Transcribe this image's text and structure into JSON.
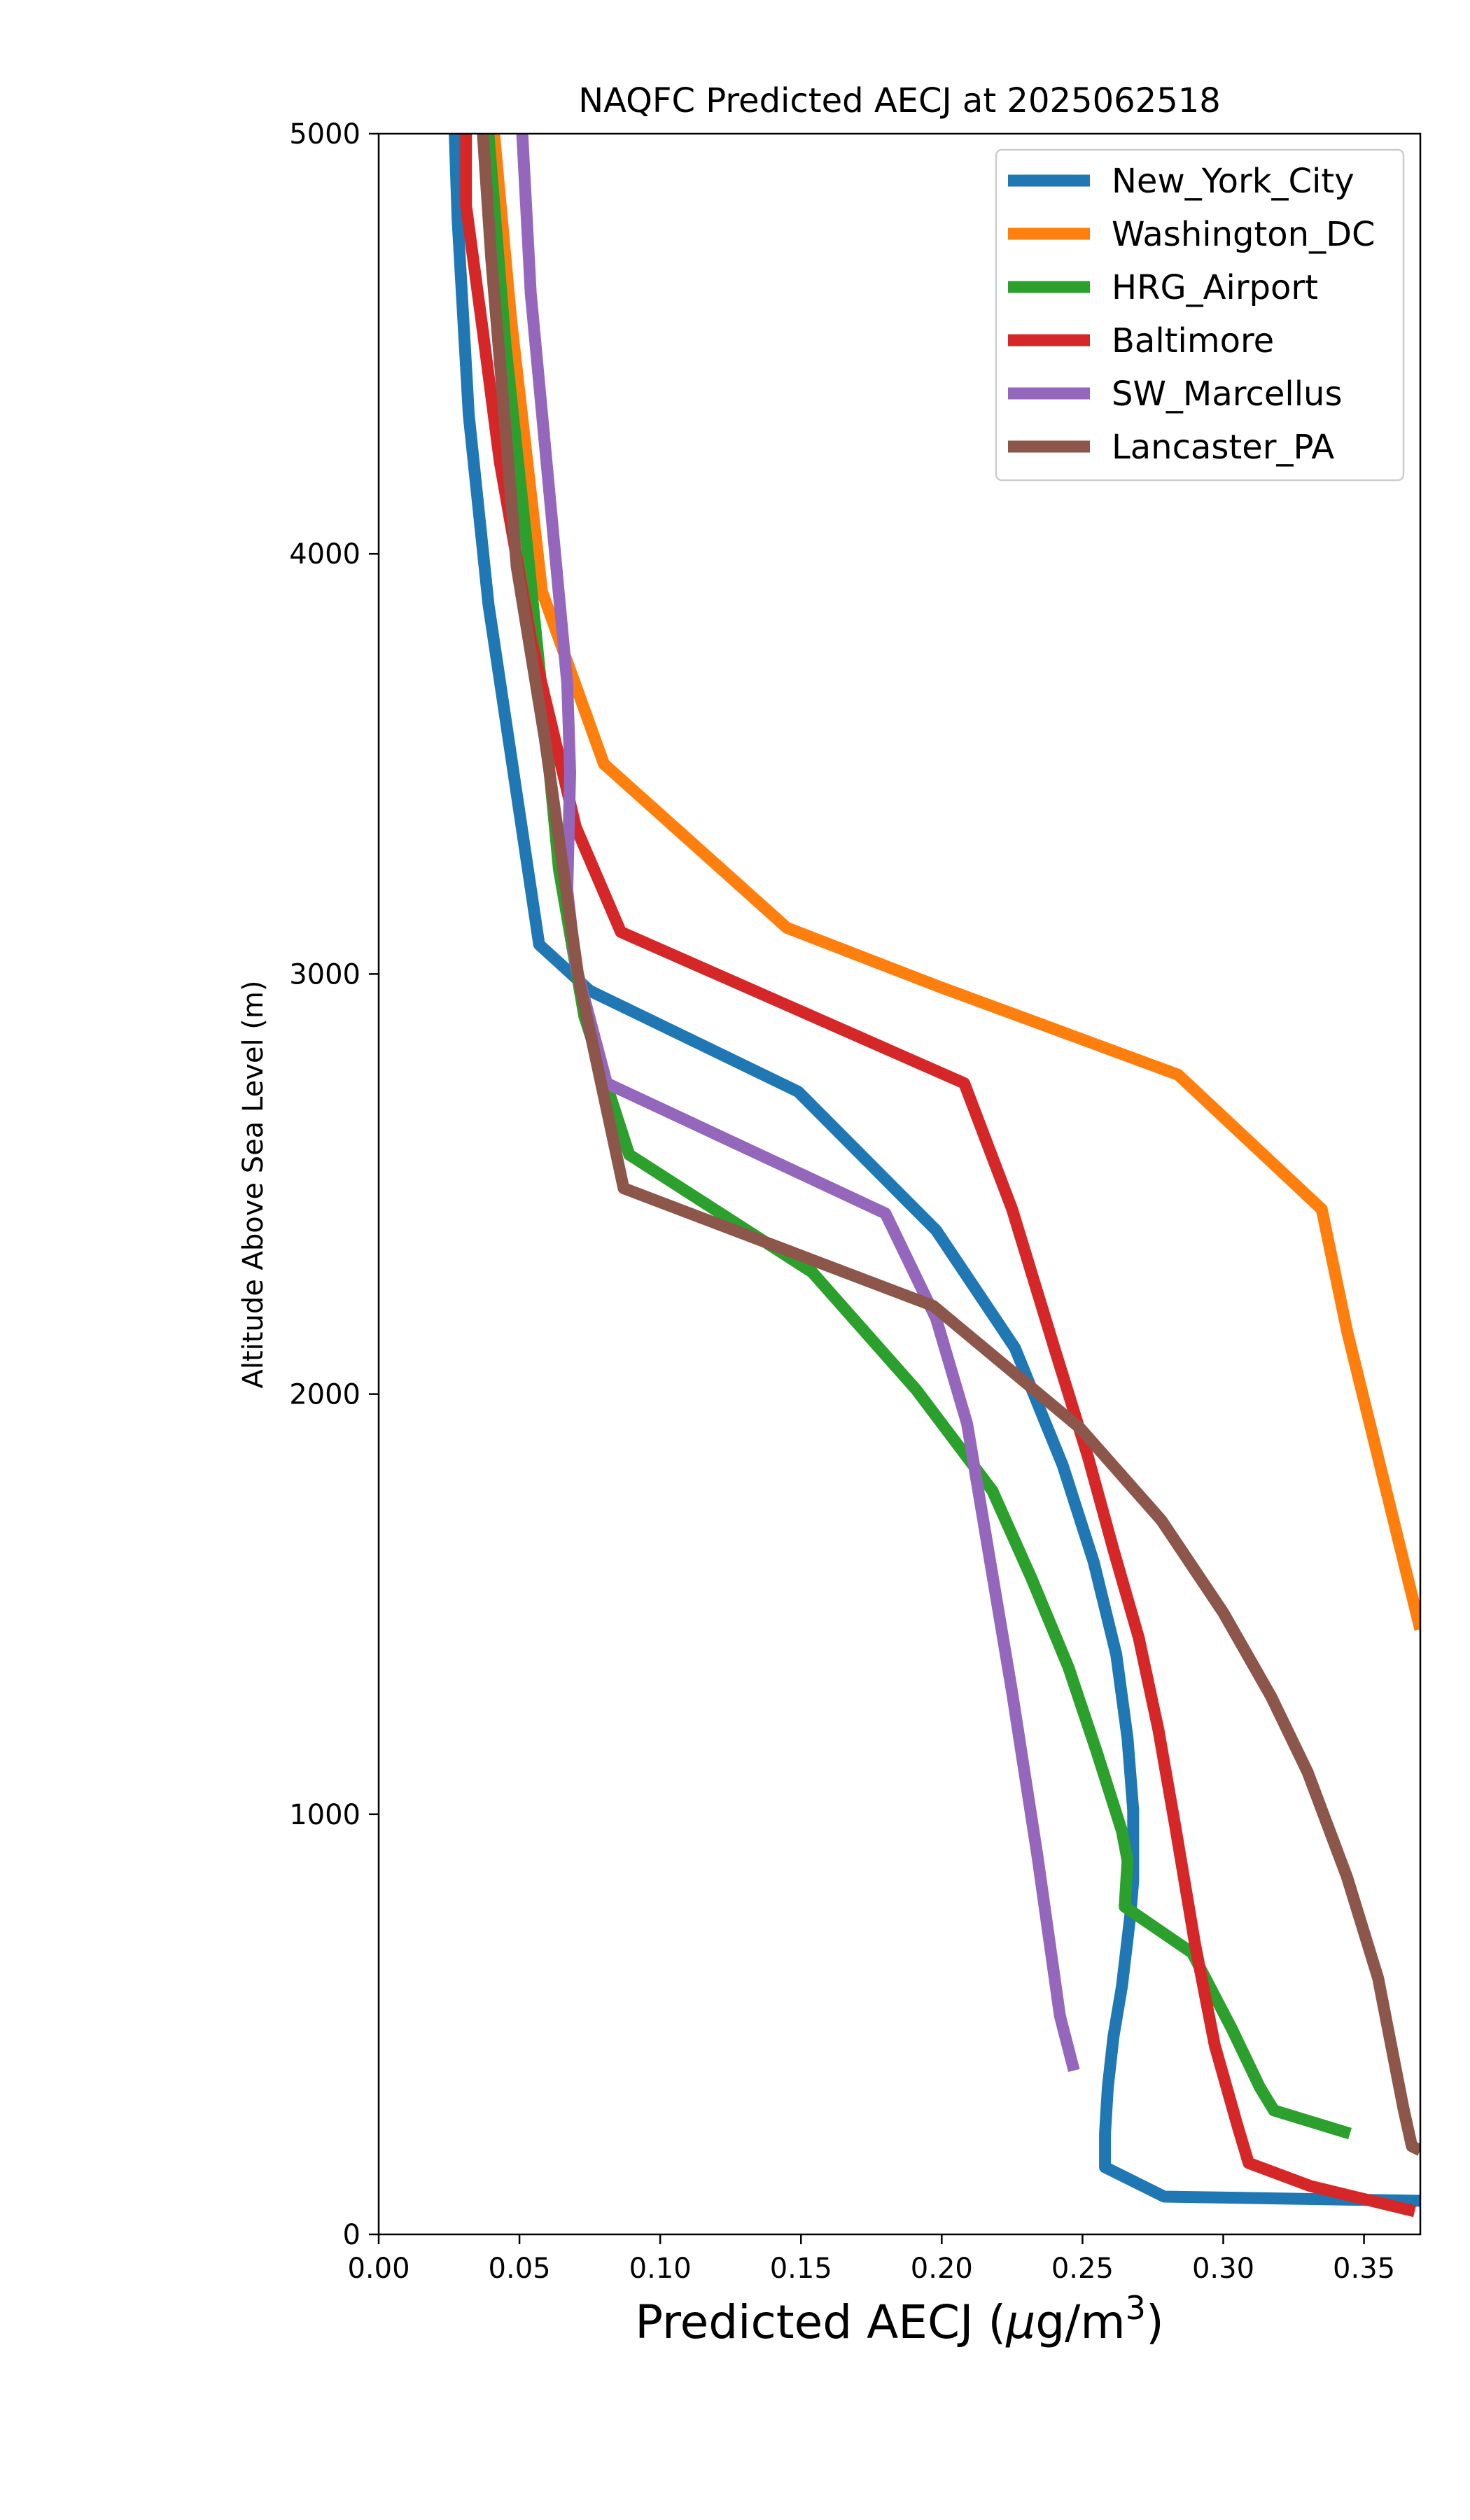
{
  "chart_data": {
    "type": "line",
    "title": "NAQFC Predicted AECJ at 2025062518",
    "xlabel": "Predicted AECJ (μg/m³)",
    "xlabel_main": "Predicted AECJ (",
    "xlabel_mu": "μ",
    "xlabel_unit": "g/m",
    "xlabel_exp": "3",
    "xlabel_close": ")",
    "ylabel": "Altitude Above Sea Level (m)",
    "xlim": [
      0,
      0.37
    ],
    "ylim": [
      0,
      5000
    ],
    "xticks": [
      0.0,
      0.05,
      0.1,
      0.15,
      0.2,
      0.25,
      0.3,
      0.35
    ],
    "xtick_labels": [
      "0.00",
      "0.05",
      "0.10",
      "0.15",
      "0.20",
      "0.25",
      "0.30",
      "0.35"
    ],
    "yticks": [
      0,
      1000,
      2000,
      3000,
      4000,
      5000
    ],
    "ytick_labels": [
      "0",
      "1000",
      "2000",
      "3000",
      "4000",
      "5000"
    ],
    "grid": false,
    "legend_position": "top-right",
    "series": [
      {
        "name": "New_York_City",
        "color": "#1f77b4",
        "points": [
          [
            0.027,
            5000
          ],
          [
            0.028,
            4800
          ],
          [
            0.032,
            4330
          ],
          [
            0.039,
            3880
          ],
          [
            0.057,
            3070
          ],
          [
            0.075,
            2960
          ],
          [
            0.149,
            2720
          ],
          [
            0.198,
            2390
          ],
          [
            0.226,
            2110
          ],
          [
            0.243,
            1830
          ],
          [
            0.254,
            1600
          ],
          [
            0.262,
            1380
          ],
          [
            0.266,
            1180
          ],
          [
            0.268,
            1010
          ],
          [
            0.268,
            840
          ],
          [
            0.267,
            760
          ],
          [
            0.264,
            590
          ],
          [
            0.261,
            470
          ],
          [
            0.259,
            350
          ],
          [
            0.258,
            240
          ],
          [
            0.258,
            160
          ],
          [
            0.279,
            90
          ],
          [
            0.37,
            80
          ]
        ]
      },
      {
        "name": "Washington_DC",
        "color": "#ff7f0e",
        "points": [
          [
            0.041,
            5000
          ],
          [
            0.047,
            4560
          ],
          [
            0.058,
            3910
          ],
          [
            0.08,
            3500
          ],
          [
            0.145,
            3110
          ],
          [
            0.199,
            2970
          ],
          [
            0.284,
            2760
          ],
          [
            0.335,
            2440
          ],
          [
            0.344,
            2150
          ],
          [
            0.37,
            1440
          ]
        ]
      },
      {
        "name": "HRG_Airport",
        "color": "#2ca02c",
        "points": [
          [
            0.039,
            5000
          ],
          [
            0.045,
            4500
          ],
          [
            0.053,
            4000
          ],
          [
            0.059,
            3600
          ],
          [
            0.064,
            3250
          ],
          [
            0.073,
            2900
          ],
          [
            0.089,
            2570
          ],
          [
            0.154,
            2290
          ],
          [
            0.191,
            2010
          ],
          [
            0.218,
            1770
          ],
          [
            0.232,
            1560
          ],
          [
            0.245,
            1350
          ],
          [
            0.255,
            1150
          ],
          [
            0.264,
            960
          ],
          [
            0.266,
            890
          ],
          [
            0.265,
            780
          ],
          [
            0.289,
            670
          ],
          [
            0.303,
            490
          ],
          [
            0.313,
            350
          ],
          [
            0.318,
            295
          ],
          [
            0.345,
            240
          ]
        ]
      },
      {
        "name": "Baltimore",
        "color": "#d62728",
        "points": [
          [
            0.031,
            5000
          ],
          [
            0.031,
            4830
          ],
          [
            0.037,
            4530
          ],
          [
            0.043,
            4220
          ],
          [
            0.054,
            3800
          ],
          [
            0.07,
            3350
          ],
          [
            0.086,
            3100
          ],
          [
            0.208,
            2740
          ],
          [
            0.225,
            2440
          ],
          [
            0.24,
            2110
          ],
          [
            0.252,
            1850
          ],
          [
            0.261,
            1630
          ],
          [
            0.27,
            1420
          ],
          [
            0.277,
            1200
          ],
          [
            0.283,
            970
          ],
          [
            0.29,
            690
          ],
          [
            0.297,
            450
          ],
          [
            0.305,
            260
          ],
          [
            0.309,
            170
          ],
          [
            0.331,
            115
          ],
          [
            0.368,
            55
          ]
        ]
      },
      {
        "name": "SW_Marcellus",
        "color": "#9467bd",
        "points": [
          [
            0.051,
            5000
          ],
          [
            0.054,
            4620
          ],
          [
            0.061,
            4120
          ],
          [
            0.067,
            3690
          ],
          [
            0.068,
            3480
          ],
          [
            0.067,
            3200
          ],
          [
            0.07,
            3020
          ],
          [
            0.081,
            2740
          ],
          [
            0.18,
            2430
          ],
          [
            0.198,
            2180
          ],
          [
            0.209,
            1930
          ],
          [
            0.218,
            1570
          ],
          [
            0.225,
            1290
          ],
          [
            0.234,
            900
          ],
          [
            0.242,
            520
          ],
          [
            0.247,
            390
          ]
        ]
      },
      {
        "name": "Lancaster_PA",
        "color": "#8c564b",
        "points": [
          [
            0.037,
            5000
          ],
          [
            0.04,
            4700
          ],
          [
            0.045,
            4300
          ],
          [
            0.049,
            3970
          ],
          [
            0.059,
            3560
          ],
          [
            0.071,
            2990
          ],
          [
            0.087,
            2490
          ],
          [
            0.197,
            2210
          ],
          [
            0.249,
            1920
          ],
          [
            0.278,
            1700
          ],
          [
            0.3,
            1480
          ],
          [
            0.317,
            1280
          ],
          [
            0.33,
            1100
          ],
          [
            0.344,
            850
          ],
          [
            0.355,
            610
          ],
          [
            0.364,
            300
          ],
          [
            0.367,
            210
          ],
          [
            0.37,
            200
          ]
        ]
      }
    ]
  }
}
